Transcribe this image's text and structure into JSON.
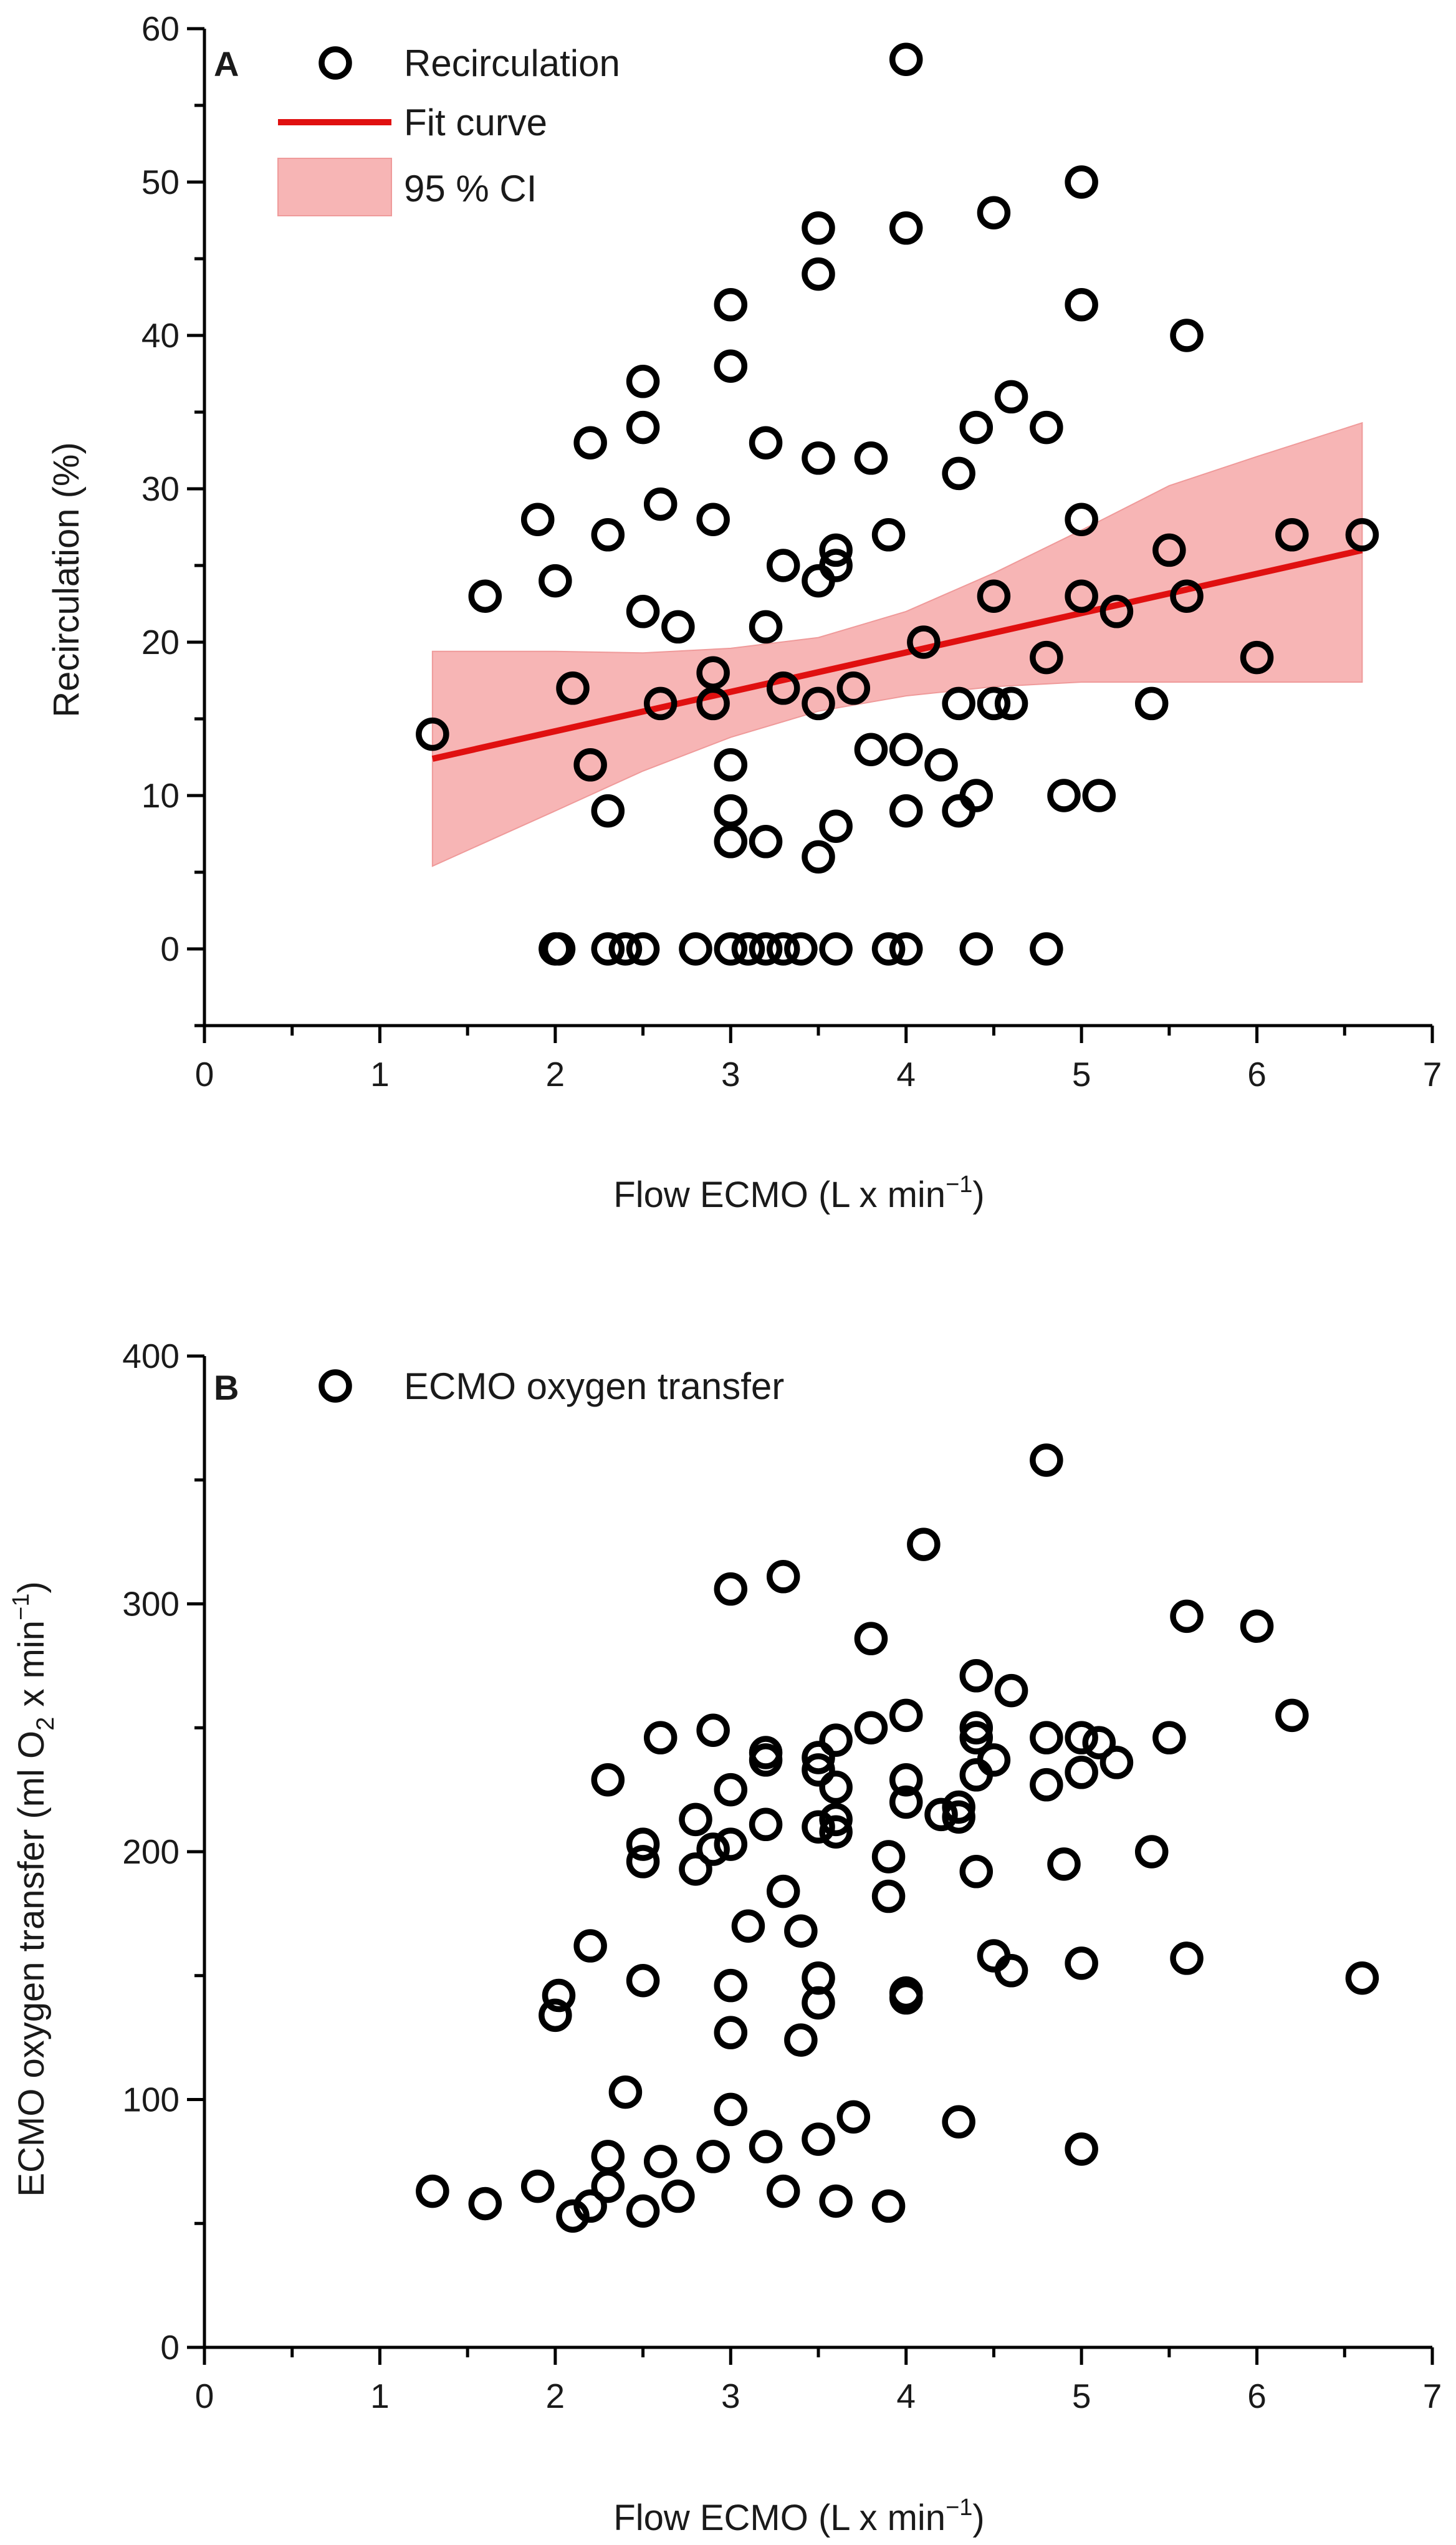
{
  "chart_data": [
    {
      "panel": "A",
      "type": "scatter",
      "title": "",
      "xlabel": "Flow ECMO (L x min",
      "xlabel_sup": "−1",
      "xlabel_close": ")",
      "ylabel": "Recirculation (%)",
      "xlim": [
        0,
        7
      ],
      "ylim": [
        -5,
        60
      ],
      "xticks": [
        "0",
        "1",
        "2",
        "3",
        "4",
        "5",
        "6",
        "7"
      ],
      "yticks": [
        "0",
        "10",
        "20",
        "30",
        "40",
        "50",
        "60"
      ],
      "legend": {
        "position": "top-left",
        "entries": [
          {
            "label": "Recirculation",
            "kind": "marker"
          },
          {
            "label": "Fit curve",
            "kind": "line",
            "color": "#e01010"
          },
          {
            "label": "95 % CI",
            "kind": "band",
            "color": "#f7b5b5"
          }
        ]
      },
      "series": [
        {
          "name": "Recirculation",
          "points": [
            [
              1.3,
              14
            ],
            [
              1.6,
              23
            ],
            [
              1.9,
              28
            ],
            [
              2.0,
              24
            ],
            [
              2.0,
              0
            ],
            [
              2.02,
              0
            ],
            [
              2.1,
              17
            ],
            [
              2.2,
              12
            ],
            [
              2.2,
              33
            ],
            [
              2.3,
              27
            ],
            [
              2.3,
              9
            ],
            [
              2.3,
              0
            ],
            [
              2.4,
              0
            ],
            [
              2.5,
              37
            ],
            [
              2.5,
              34
            ],
            [
              2.5,
              22
            ],
            [
              2.5,
              0
            ],
            [
              2.6,
              29
            ],
            [
              2.6,
              16
            ],
            [
              2.7,
              21
            ],
            [
              2.8,
              0
            ],
            [
              2.9,
              28
            ],
            [
              2.9,
              18
            ],
            [
              2.9,
              16
            ],
            [
              3.0,
              42
            ],
            [
              3.0,
              38
            ],
            [
              3.0,
              12
            ],
            [
              3.0,
              9
            ],
            [
              3.0,
              7
            ],
            [
              3.0,
              0
            ],
            [
              3.1,
              0
            ],
            [
              3.2,
              33
            ],
            [
              3.2,
              21
            ],
            [
              3.2,
              7
            ],
            [
              3.2,
              0
            ],
            [
              3.3,
              25
            ],
            [
              3.3,
              17
            ],
            [
              3.3,
              0
            ],
            [
              3.4,
              0
            ],
            [
              3.5,
              47
            ],
            [
              3.5,
              44
            ],
            [
              3.5,
              32
            ],
            [
              3.5,
              24
            ],
            [
              3.5,
              16
            ],
            [
              3.5,
              6
            ],
            [
              3.6,
              26
            ],
            [
              3.6,
              25
            ],
            [
              3.6,
              8
            ],
            [
              3.6,
              0
            ],
            [
              3.7,
              17
            ],
            [
              3.8,
              32
            ],
            [
              3.8,
              13
            ],
            [
              3.9,
              27
            ],
            [
              3.9,
              0
            ],
            [
              4.0,
              58
            ],
            [
              4.0,
              47
            ],
            [
              4.0,
              13
            ],
            [
              4.0,
              9
            ],
            [
              4.0,
              0
            ],
            [
              4.1,
              20
            ],
            [
              4.2,
              12
            ],
            [
              4.3,
              31
            ],
            [
              4.3,
              16
            ],
            [
              4.3,
              9
            ],
            [
              4.4,
              34
            ],
            [
              4.4,
              10
            ],
            [
              4.4,
              0
            ],
            [
              4.5,
              48
            ],
            [
              4.5,
              23
            ],
            [
              4.5,
              16
            ],
            [
              4.6,
              36
            ],
            [
              4.6,
              16
            ],
            [
              4.8,
              34
            ],
            [
              4.8,
              19
            ],
            [
              4.8,
              0
            ],
            [
              4.9,
              10
            ],
            [
              5.0,
              50
            ],
            [
              5.0,
              42
            ],
            [
              5.0,
              28
            ],
            [
              5.0,
              23
            ],
            [
              5.1,
              10
            ],
            [
              5.2,
              22
            ],
            [
              5.4,
              16
            ],
            [
              5.5,
              26
            ],
            [
              5.6,
              40
            ],
            [
              5.6,
              23
            ],
            [
              6.0,
              19
            ],
            [
              6.2,
              27
            ],
            [
              6.6,
              27
            ]
          ]
        },
        {
          "name": "Fit curve",
          "line": [
            [
              1.3,
              12.4
            ],
            [
              6.6,
              26.0
            ]
          ]
        },
        {
          "name": "95 % CI",
          "upper": [
            [
              1.3,
              19.4
            ],
            [
              2.0,
              19.4
            ],
            [
              2.5,
              19.3
            ],
            [
              3.0,
              19.6
            ],
            [
              3.5,
              20.3
            ],
            [
              4.0,
              22.0
            ],
            [
              4.5,
              24.5
            ],
            [
              5.0,
              27.3
            ],
            [
              5.5,
              30.2
            ],
            [
              6.0,
              32.1
            ],
            [
              6.6,
              34.3
            ]
          ],
          "lower": [
            [
              1.3,
              5.4
            ],
            [
              2.0,
              9.0
            ],
            [
              2.5,
              11.6
            ],
            [
              3.0,
              13.8
            ],
            [
              3.5,
              15.5
            ],
            [
              4.0,
              16.5
            ],
            [
              4.5,
              17.1
            ],
            [
              5.0,
              17.4
            ],
            [
              5.5,
              17.4
            ],
            [
              6.0,
              17.4
            ],
            [
              6.6,
              17.4
            ]
          ]
        }
      ]
    },
    {
      "panel": "B",
      "type": "scatter",
      "title": "",
      "xlabel": "Flow ECMO (L x min",
      "xlabel_sup": "−1",
      "xlabel_close": ")",
      "ylabel_parts": [
        "ECMO oxygen transfer (ml O",
        "2",
        " x min",
        "−1",
        ")"
      ],
      "xlim": [
        0,
        7
      ],
      "ylim": [
        0,
        400
      ],
      "xticks": [
        "0",
        "1",
        "2",
        "3",
        "4",
        "5",
        "6",
        "7"
      ],
      "yticks": [
        "0",
        "100",
        "200",
        "300",
        "400"
      ],
      "legend": {
        "position": "top-left",
        "entries": [
          {
            "label": "ECMO oxygen transfer",
            "kind": "marker"
          }
        ]
      },
      "series": [
        {
          "name": "ECMO oxygen transfer",
          "points": [
            [
              1.3,
              63
            ],
            [
              1.6,
              58
            ],
            [
              1.9,
              65
            ],
            [
              2.0,
              134
            ],
            [
              2.02,
              142
            ],
            [
              2.1,
              53
            ],
            [
              2.2,
              162
            ],
            [
              2.2,
              57
            ],
            [
              2.3,
              229
            ],
            [
              2.3,
              77
            ],
            [
              2.3,
              65
            ],
            [
              2.4,
              103
            ],
            [
              2.5,
              203
            ],
            [
              2.5,
              196
            ],
            [
              2.5,
              148
            ],
            [
              2.5,
              55
            ],
            [
              2.6,
              246
            ],
            [
              2.6,
              75
            ],
            [
              2.7,
              61
            ],
            [
              2.8,
              213
            ],
            [
              2.8,
              193
            ],
            [
              2.9,
              249
            ],
            [
              2.9,
              201
            ],
            [
              2.9,
              77
            ],
            [
              3.0,
              306
            ],
            [
              3.0,
              225
            ],
            [
              3.0,
              203
            ],
            [
              3.0,
              146
            ],
            [
              3.0,
              127
            ],
            [
              3.0,
              96
            ],
            [
              3.1,
              170
            ],
            [
              3.2,
              240
            ],
            [
              3.2,
              237
            ],
            [
              3.2,
              211
            ],
            [
              3.2,
              81
            ],
            [
              3.3,
              311
            ],
            [
              3.3,
              184
            ],
            [
              3.3,
              63
            ],
            [
              3.4,
              168
            ],
            [
              3.4,
              124
            ],
            [
              3.5,
              238
            ],
            [
              3.5,
              233
            ],
            [
              3.5,
              210
            ],
            [
              3.5,
              149
            ],
            [
              3.5,
              139
            ],
            [
              3.5,
              84
            ],
            [
              3.6,
              245
            ],
            [
              3.6,
              226
            ],
            [
              3.6,
              213
            ],
            [
              3.6,
              208
            ],
            [
              3.6,
              59
            ],
            [
              3.7,
              93
            ],
            [
              3.8,
              286
            ],
            [
              3.8,
              250
            ],
            [
              3.9,
              198
            ],
            [
              3.9,
              182
            ],
            [
              3.9,
              57
            ],
            [
              4.0,
              255
            ],
            [
              4.0,
              229
            ],
            [
              4.0,
              220
            ],
            [
              4.0,
              143
            ],
            [
              4.0,
              141
            ],
            [
              4.1,
              324
            ],
            [
              4.2,
              215
            ],
            [
              4.3,
              218
            ],
            [
              4.3,
              214
            ],
            [
              4.3,
              91
            ],
            [
              4.4,
              271
            ],
            [
              4.4,
              250
            ],
            [
              4.4,
              246
            ],
            [
              4.4,
              231
            ],
            [
              4.4,
              192
            ],
            [
              4.5,
              237
            ],
            [
              4.5,
              158
            ],
            [
              4.6,
              265
            ],
            [
              4.6,
              152
            ],
            [
              4.8,
              358
            ],
            [
              4.8,
              246
            ],
            [
              4.8,
              227
            ],
            [
              4.9,
              195
            ],
            [
              5.0,
              246
            ],
            [
              5.0,
              232
            ],
            [
              5.0,
              155
            ],
            [
              5.0,
              80
            ],
            [
              5.1,
              244
            ],
            [
              5.2,
              236
            ],
            [
              5.4,
              200
            ],
            [
              5.5,
              246
            ],
            [
              5.6,
              295
            ],
            [
              5.6,
              157
            ],
            [
              6.0,
              291
            ],
            [
              6.2,
              255
            ],
            [
              6.6,
              149
            ]
          ]
        }
      ]
    }
  ]
}
